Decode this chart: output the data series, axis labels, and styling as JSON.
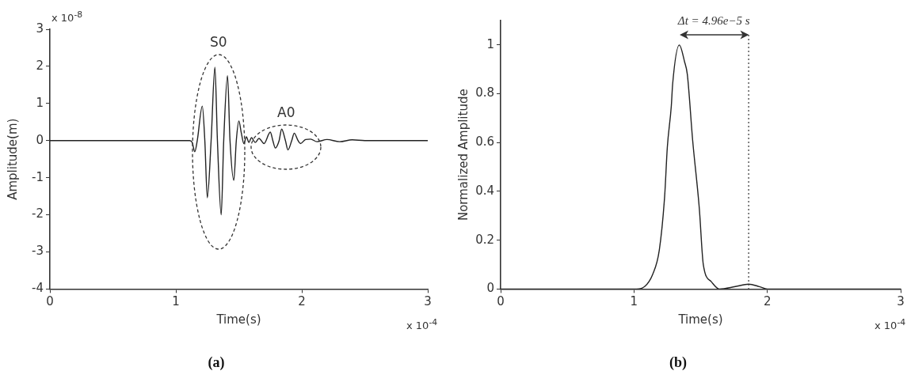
{
  "chart_data": [
    {
      "type": "line",
      "title": "(a)",
      "xlabel": "Time(s)",
      "ylabel": "Amplitude(m)",
      "x": [
        0,
        1.11,
        1.13,
        1.15,
        1.17,
        1.21,
        1.23,
        1.25,
        1.28,
        1.31,
        1.33,
        1.36,
        1.38,
        1.41,
        1.43,
        1.46,
        1.48,
        1.5,
        1.52,
        1.54,
        1.56,
        1.58,
        1.6,
        1.63,
        1.66,
        1.7,
        1.75,
        1.77,
        1.79,
        1.82,
        1.84,
        1.87,
        1.89,
        1.92,
        1.94,
        1.97,
        1.99,
        2.03,
        2.07,
        2.12,
        2.2,
        2.3,
        2.4,
        2.5,
        3
      ],
      "series": [
        {
          "color": "#222222",
          "values": [
            0,
            0,
            -0.05,
            -0.3,
            0,
            0.93,
            0,
            -1.54,
            0,
            1.98,
            0,
            -2.0,
            0,
            1.75,
            0,
            -1.07,
            0,
            0.53,
            0.2,
            -0.08,
            0.1,
            -0.05,
            0.08,
            -0.05,
            0.06,
            -0.08,
            0.23,
            0,
            -0.2,
            0,
            0.31,
            0,
            -0.25,
            0,
            0.2,
            0,
            -0.08,
            0.03,
            0.04,
            -0.03,
            0.03,
            -0.03,
            0.02,
            0,
            0
          ]
        }
      ],
      "xlim": [
        0,
        3
      ],
      "xticks": [
        0,
        1,
        2,
        3
      ],
      "ylim": [
        -4,
        3
      ],
      "yticks": [
        -4,
        -3,
        -2,
        -1,
        0,
        1,
        2,
        3
      ],
      "grid": false,
      "legend": false,
      "annotations": [
        "S0",
        "A0",
        "x 10$^{-8}$",
        "x 10$^{-4}$"
      ]
    },
    {
      "type": "line",
      "title": "(b)",
      "xlabel": "Time(s)",
      "ylabel": "Normalized Amplitude",
      "x": [
        0,
        1.0,
        1.02,
        1.08,
        1.14,
        1.19,
        1.23,
        1.25,
        1.28,
        1.29,
        1.34,
        1.38,
        1.4,
        1.44,
        1.49,
        1.52,
        1.58,
        1.64,
        1.76,
        1.86,
        1.94,
        2.0,
        3
      ],
      "series": [
        {
          "color": "#222222",
          "values": [
            0,
            0,
            0,
            0.01,
            0.06,
            0.16,
            0.38,
            0.58,
            0.75,
            0.84,
            1.0,
            0.93,
            0.88,
            0.61,
            0.33,
            0.1,
            0.03,
            0,
            0.01,
            0.02,
            0.01,
            0,
            0
          ]
        }
      ],
      "xlim": [
        0,
        3
      ],
      "xticks": [
        0,
        1,
        2,
        3
      ],
      "ylim": [
        0,
        1.1
      ],
      "yticks": [
        0,
        0.2,
        0.4,
        0.6,
        0.8,
        1
      ],
      "grid": false,
      "legend": false,
      "ref_lines": [
        {
          "axis": "x",
          "value": 1.86,
          "line_style": "dotted",
          "color": "#333333"
        }
      ],
      "annotations": [
        "Δt = 4.96e−5 s",
        "x 10$^{-4}$"
      ]
    }
  ]
}
